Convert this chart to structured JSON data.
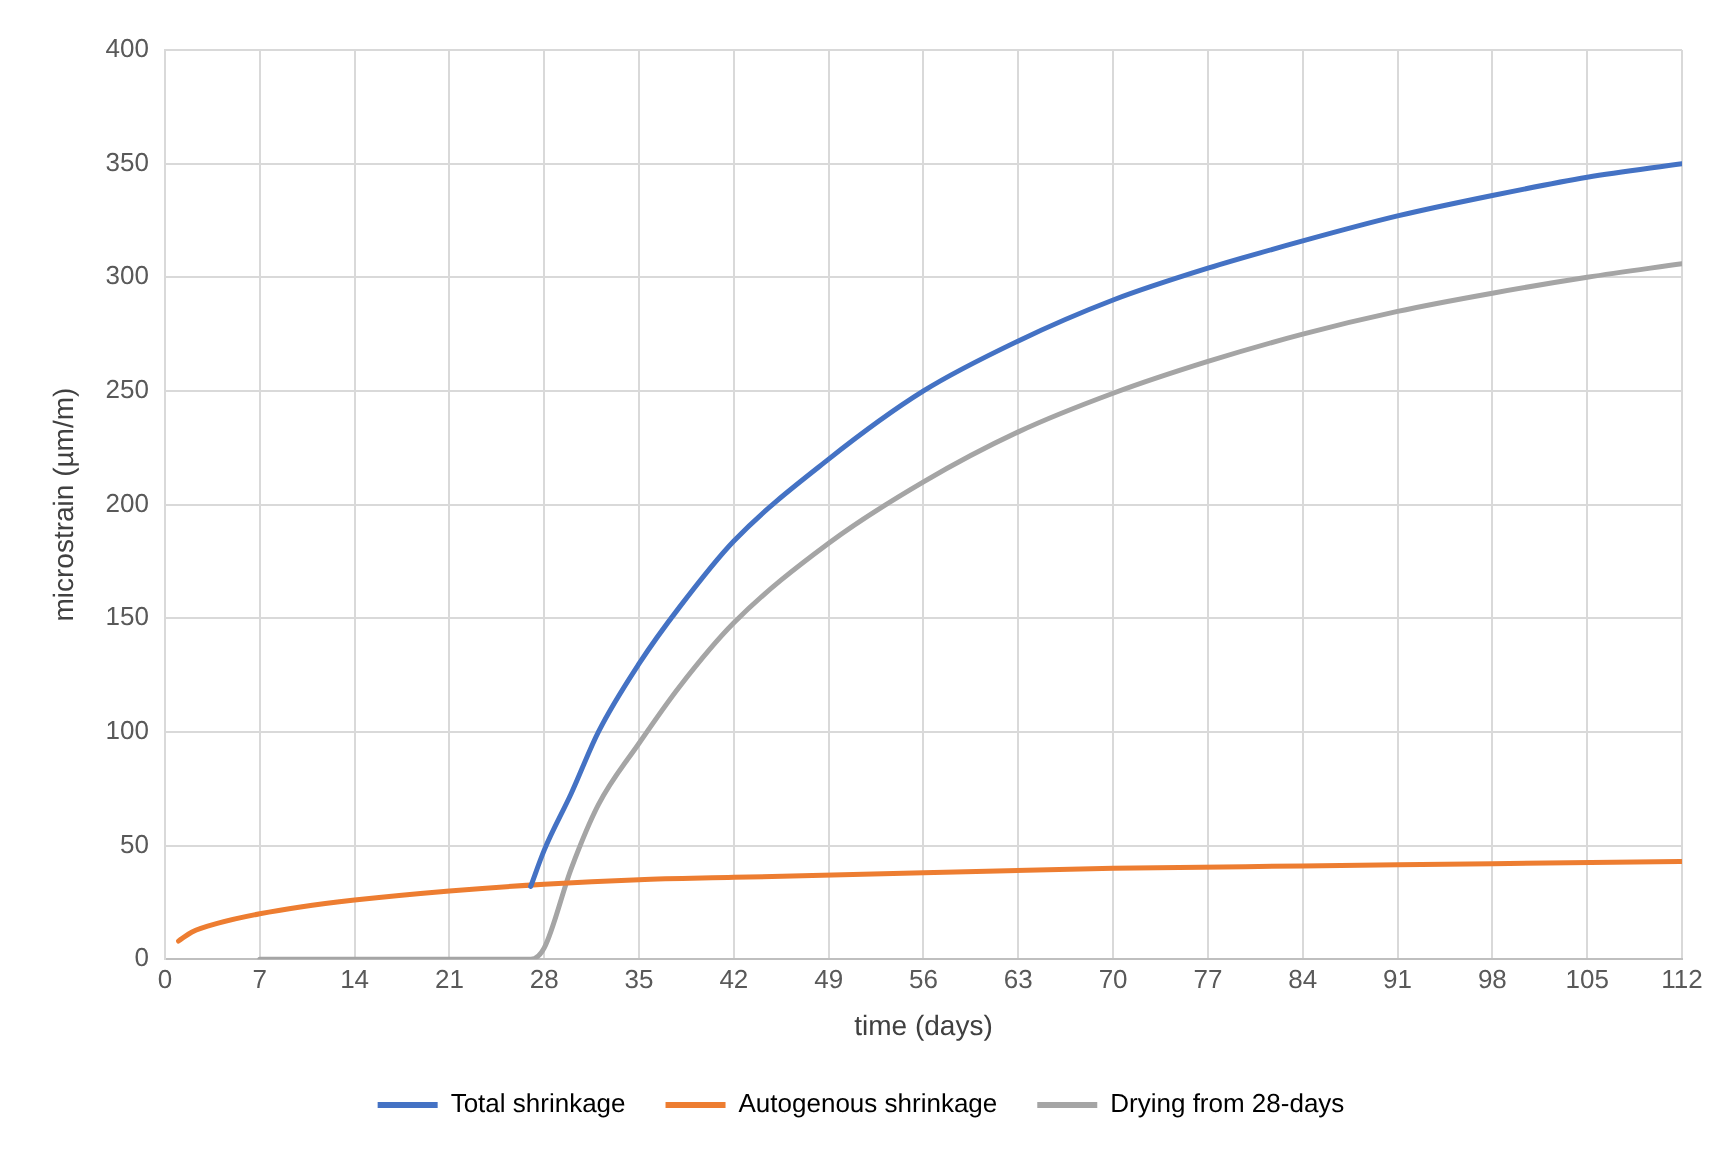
{
  "chart_data": {
    "type": "line",
    "xlabel": "time (days)",
    "ylabel": "microstrain (µm/m)",
    "xlim": [
      0,
      112
    ],
    "xticks": [
      0,
      7,
      14,
      21,
      28,
      35,
      42,
      49,
      56,
      63,
      70,
      77,
      84,
      91,
      98,
      105,
      112
    ],
    "ylim": [
      0,
      400
    ],
    "yticks": [
      0,
      50,
      100,
      150,
      200,
      250,
      300,
      350,
      400
    ],
    "grid": true,
    "legend": "bottom",
    "marker": "none",
    "line_style": "solid",
    "series": [
      {
        "name": "Total shrinkage",
        "color": "#4472c4",
        "x": [
          27,
          28,
          30,
          32,
          35,
          38,
          42,
          49,
          56,
          63,
          70,
          77,
          84,
          91,
          98,
          105,
          112
        ],
        "values": [
          32,
          48,
          73,
          100,
          130,
          155,
          184,
          220,
          250,
          272,
          290,
          304,
          316,
          327,
          336,
          344,
          350
        ]
      },
      {
        "name": "Autogenous shrinkage",
        "color": "#ed7d31",
        "x": [
          1,
          2,
          4,
          7,
          10,
          14,
          21,
          28,
          35,
          42,
          56,
          70,
          84,
          98,
          112
        ],
        "values": [
          8,
          12,
          16,
          20,
          23,
          26,
          30,
          33,
          35,
          36,
          38,
          40,
          41,
          42,
          43
        ]
      },
      {
        "name": "Drying from 28-days",
        "color": "#a5a5a5",
        "x": [
          7,
          27,
          28,
          30,
          32,
          35,
          38,
          42,
          49,
          56,
          63,
          70,
          77,
          84,
          91,
          98,
          105,
          112
        ],
        "values": [
          0,
          0,
          5,
          40,
          68,
          95,
          120,
          148,
          183,
          210,
          232,
          249,
          263,
          275,
          285,
          293,
          300,
          306
        ]
      }
    ]
  }
}
